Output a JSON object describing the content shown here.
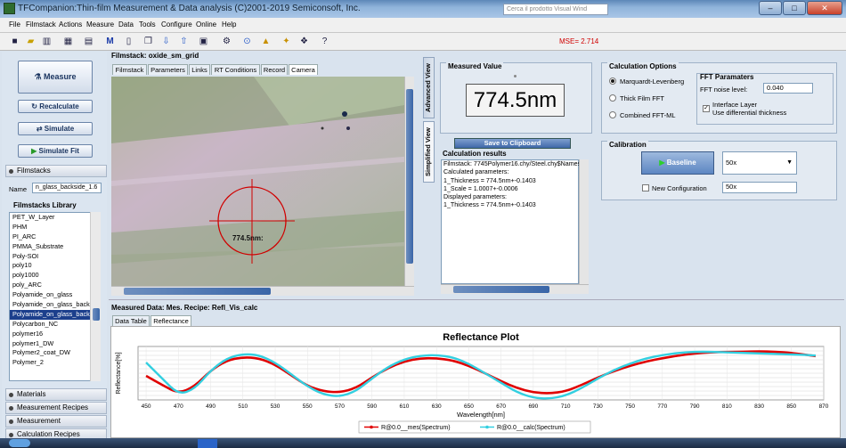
{
  "window": {
    "title": "TFCompanion:Thin-film Measurement & Data analysis (C)2001-2019 Semiconsoft, Inc.",
    "search_placeholder": "Cerca il prodotto Visual Wind"
  },
  "menu": [
    "File",
    "Filmstack",
    "Actions",
    "Measure",
    "Data",
    "Tools",
    "Configure",
    "Online",
    "Help"
  ],
  "toolbar": {
    "mse": "MSE= 2.714",
    "help_glyph": "?"
  },
  "left": {
    "measure": "Measure",
    "recalculate": "Recalculate",
    "simulate": "Simulate",
    "simulate_fit": "Simulate Fit",
    "filmstacks": "Filmstacks",
    "name_label": "Name",
    "name_value": "n_glass_backside_1.6",
    "library_title": "Filmstacks Library",
    "library_items": [
      "PET_W_Layer",
      "PHM",
      "PI_ARC",
      "PMMA_Substrate",
      "Poly-SOI",
      "poly10",
      "poly1000",
      "poly_ARC",
      "Polyamide_on_glass",
      "Polyamide_on_glass_back",
      "Polyamide_on_glass_back",
      "Polycarbon_NC",
      "polymer16",
      "polymer1_DW",
      "Polymer2_coat_DW",
      "Polymer_2"
    ],
    "selected_index": 10,
    "sections": [
      "Materials",
      "Measurement Recipes",
      "Measurement",
      "Calculation Recipes"
    ]
  },
  "center": {
    "filmstack_title": "Filmstack: oxide_sm_grid",
    "tabs": [
      "Filmstack",
      "Parameters",
      "Links",
      "RT Conditions",
      "Record",
      "Camera"
    ],
    "active_tab": 5,
    "marker_label": "774.5nm:"
  },
  "side_tabs": [
    "Advanced View",
    "Simplified View"
  ],
  "measured": {
    "title": "Measured Value",
    "value": "774.5nm",
    "clipboard": "Save to Clipboard"
  },
  "results": {
    "title": "Calculation results",
    "lines": [
      "Filmstack: 7745Polymer16.chy/Steel.chy$Names",
      "Calculated parameters:",
      "1_Thickness = 774.5nm+-0.1403",
      "1_Scale = 1.0007+-0.0006",
      "Displayed parameters:",
      "1_Thickness = 774.5nm+-0.1403"
    ]
  },
  "calc_options": {
    "title": "Calculation Options",
    "options": [
      "Marquardt-Levenberg",
      "Thick Film FFT",
      "Combined FFT-ML"
    ],
    "selected": 0,
    "fft_title": "FFT Paramaters",
    "noise_label": "FFT noise level:",
    "noise_value": "0.040",
    "interface_label": "Interface Layer",
    "diff_label": "Use differential thickness",
    "interface_checked": true
  },
  "calibration": {
    "title": "Calibration",
    "baseline": "Baseline",
    "objective": "50x",
    "new_config_label": "New Configuration",
    "new_config_value": "50x",
    "new_config_checked": false
  },
  "bottom": {
    "title": "Measured Data: Mes. Recipe: Refl_Vis_calc",
    "tabs": [
      "Data Table",
      "Reflectance"
    ],
    "active_tab": 1
  },
  "chart_data": {
    "type": "line",
    "title": "Reflectance Plot",
    "xlabel": "Wavelength[nm]",
    "ylabel": "Reflectance[%]",
    "xlim": [
      445,
      870
    ],
    "x_ticks": [
      450,
      470,
      490,
      510,
      530,
      550,
      570,
      590,
      610,
      630,
      650,
      670,
      690,
      710,
      730,
      750,
      770,
      790,
      810,
      830,
      850,
      870
    ],
    "ylim": [
      0,
      1
    ],
    "grid": true,
    "legend": "bottom",
    "series": [
      {
        "name": "R@0.0__mes(Spectrum)",
        "color": "#e00000",
        "x": [
          450,
          460,
          470,
          480,
          490,
          500,
          510,
          520,
          530,
          540,
          550,
          560,
          570,
          580,
          590,
          600,
          610,
          620,
          630,
          640,
          650,
          660,
          670,
          680,
          690,
          700,
          710,
          720,
          730,
          740,
          750,
          760,
          770,
          780,
          790,
          800,
          810,
          820,
          830,
          840,
          850,
          860,
          865
        ],
        "y": [
          0.45,
          0.28,
          0.12,
          0.25,
          0.55,
          0.74,
          0.8,
          0.78,
          0.66,
          0.46,
          0.26,
          0.16,
          0.14,
          0.22,
          0.42,
          0.6,
          0.72,
          0.78,
          0.78,
          0.74,
          0.64,
          0.5,
          0.35,
          0.22,
          0.14,
          0.12,
          0.16,
          0.28,
          0.42,
          0.54,
          0.64,
          0.72,
          0.78,
          0.83,
          0.87,
          0.89,
          0.9,
          0.9,
          0.91,
          0.9,
          0.88,
          0.84,
          0.82
        ]
      },
      {
        "name": "R@0.0__calc(Spectrum)",
        "color": "#33cfe0",
        "x": [
          450,
          460,
          470,
          480,
          490,
          500,
          510,
          520,
          530,
          540,
          550,
          560,
          570,
          580,
          590,
          600,
          610,
          620,
          630,
          640,
          650,
          660,
          670,
          680,
          690,
          700,
          710,
          720,
          730,
          740,
          750,
          760,
          770,
          780,
          790,
          800,
          810,
          820,
          830,
          840,
          850,
          860,
          865
        ],
        "y": [
          0.7,
          0.4,
          0.1,
          0.2,
          0.55,
          0.78,
          0.86,
          0.84,
          0.7,
          0.48,
          0.25,
          0.1,
          0.06,
          0.16,
          0.4,
          0.62,
          0.76,
          0.83,
          0.84,
          0.8,
          0.68,
          0.5,
          0.32,
          0.14,
          0.04,
          0.02,
          0.08,
          0.22,
          0.4,
          0.56,
          0.68,
          0.78,
          0.84,
          0.88,
          0.9,
          0.9,
          0.89,
          0.88,
          0.87,
          0.86,
          0.85,
          0.84,
          0.83
        ]
      }
    ]
  }
}
